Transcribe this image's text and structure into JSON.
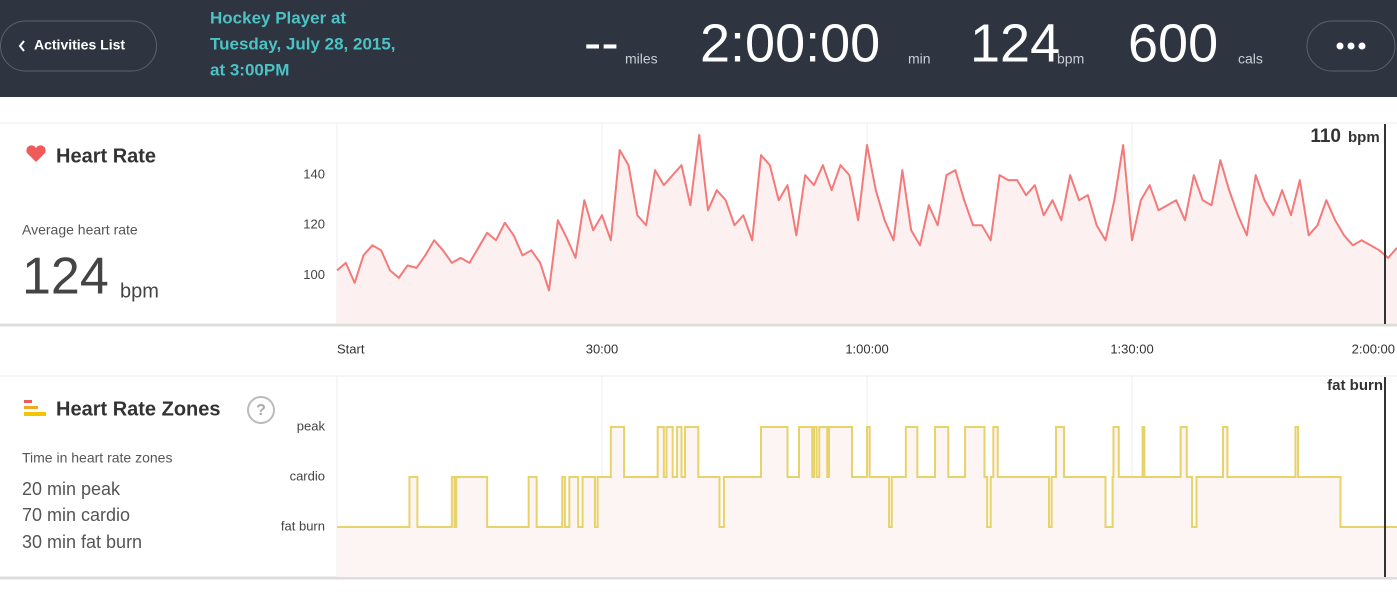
{
  "header": {
    "back_button": "Activities List",
    "title_lines": [
      "Hockey Player at",
      "Tuesday, July 28, 2015,",
      "at 3:00PM"
    ],
    "stats": [
      {
        "value": "--",
        "unit": "miles"
      },
      {
        "value": "2:00:00",
        "unit": "min"
      },
      {
        "value": 124,
        "unit": "bpm"
      },
      {
        "value": 600,
        "unit": "cals"
      }
    ]
  },
  "heart_rate": {
    "title": "Heart Rate",
    "average_label": "Average heart rate",
    "average_value": 124,
    "average_unit": "bpm",
    "cursor_value": 110,
    "cursor_unit": "bpm"
  },
  "zones": {
    "title": "Heart Rate Zones",
    "help": "?",
    "summary_label": "Time in heart rate zones",
    "summary": [
      "20 min peak",
      "70 min cardio",
      "30 min fat burn"
    ],
    "cursor_label": "fat burn"
  },
  "chart_data": [
    {
      "type": "line",
      "color": "#f47a7a",
      "fill": "#fdf0f0",
      "grid": true,
      "x": [
        0,
        1,
        2,
        3,
        4,
        5,
        6,
        7,
        8,
        9,
        10,
        11,
        12,
        13,
        14,
        15,
        16,
        17,
        18,
        19,
        20,
        21,
        22,
        23,
        24,
        25,
        26,
        27,
        28,
        29,
        30,
        31,
        32,
        33,
        34,
        35,
        36,
        37,
        38,
        39,
        40,
        41,
        42,
        43,
        44,
        45,
        46,
        47,
        48,
        49,
        50,
        51,
        52,
        53,
        54,
        55,
        56,
        57,
        58,
        59,
        60,
        61,
        62,
        63,
        64,
        65,
        66,
        67,
        68,
        69,
        70,
        71,
        72,
        73,
        74,
        75,
        76,
        77,
        78,
        79,
        80,
        81,
        82,
        83,
        84,
        85,
        86,
        87,
        88,
        89,
        90,
        91,
        92,
        93,
        94,
        95,
        96,
        97,
        98,
        99,
        100,
        101,
        102,
        103,
        104,
        105,
        106,
        107,
        108,
        109,
        110,
        111,
        112,
        113,
        114,
        115,
        116,
        117,
        118,
        119,
        120
      ],
      "values": [
        102,
        105,
        97,
        108,
        112,
        110,
        102,
        99,
        104,
        103,
        108,
        114,
        110,
        105,
        107,
        105,
        111,
        117,
        114,
        121,
        116,
        108,
        110,
        105,
        94,
        122,
        115,
        107,
        130,
        118,
        124,
        114,
        150,
        144,
        124,
        120,
        142,
        136,
        140,
        144,
        128,
        156,
        126,
        134,
        130,
        120,
        124,
        114,
        148,
        144,
        130,
        136,
        116,
        140,
        136,
        144,
        134,
        144,
        140,
        122,
        152,
        134,
        122,
        114,
        142,
        118,
        112,
        128,
        120,
        140,
        142,
        130,
        120,
        120,
        114,
        140,
        138,
        138,
        132,
        136,
        124,
        130,
        122,
        140,
        130,
        132,
        120,
        114,
        130,
        152,
        114,
        130,
        136,
        126,
        128,
        130,
        122,
        140,
        130,
        128,
        146,
        134,
        124,
        116,
        140,
        130,
        124,
        134,
        124,
        138,
        116,
        120,
        130,
        122,
        116,
        112,
        114,
        112,
        110,
        107,
        111
      ],
      "xlim": [
        0,
        120
      ],
      "xticks": [
        {
          "value": 0,
          "label": "Start"
        },
        {
          "value": 30,
          "label": "30:00"
        },
        {
          "value": 60,
          "label": "1:00:00"
        },
        {
          "value": 90,
          "label": "1:30:00"
        },
        {
          "value": 120,
          "label": "2:00:00"
        }
      ],
      "ylim": [
        81,
        160
      ],
      "yticks": [
        100,
        120,
        140
      ]
    },
    {
      "type": "step",
      "color": "#e8d26a",
      "fill": "#fdf5f3",
      "grid": true,
      "x": [
        0,
        8.2,
        9.1,
        13.0,
        13.3,
        13.5,
        17.0,
        21.7,
        22.6,
        25.5,
        25.8,
        26.3,
        27.3,
        27.8,
        29.2,
        29.5,
        31.0,
        32.5,
        36.3,
        37.0,
        37.3,
        38.0,
        38.5,
        39.0,
        39.4,
        40.9,
        43.3,
        43.8,
        48.0,
        51.0,
        52.3,
        53.8,
        54.0,
        54.3,
        54.6,
        55.5,
        55.7,
        58.3,
        60.0,
        60.3,
        62.5,
        62.8,
        64.4,
        65.7,
        67.7,
        69.2,
        71.1,
        73.3,
        73.6,
        74.0,
        74.3,
        74.8,
        80.6,
        80.9,
        81.4,
        82.3,
        87.0,
        87.8,
        87.9,
        88.5,
        91.2,
        91.4,
        95.5,
        96.2,
        96.8,
        97.3,
        100.3,
        100.8,
        108.5,
        108.8,
        113.6,
        120
      ],
      "values": [
        0,
        1,
        0,
        1,
        0,
        1,
        0,
        1,
        0,
        1,
        0,
        1,
        0,
        1,
        0,
        1,
        2,
        1,
        2,
        1,
        2,
        1,
        2,
        1,
        2,
        1,
        0,
        1,
        2,
        1,
        2,
        1,
        2,
        1,
        2,
        1,
        2,
        1,
        2,
        1,
        0,
        1,
        2,
        1,
        2,
        1,
        2,
        1,
        0,
        1,
        2,
        1,
        0,
        1,
        2,
        1,
        0,
        1,
        2,
        1,
        2,
        1,
        2,
        1,
        0,
        1,
        2,
        1,
        2,
        1,
        0,
        0
      ],
      "xlim": [
        0,
        120
      ],
      "ylim": [
        -1,
        3
      ],
      "yticks": [
        {
          "value": 0,
          "label": "fat burn"
        },
        {
          "value": 1,
          "label": "cardio"
        },
        {
          "value": 2,
          "label": "peak"
        }
      ]
    }
  ]
}
